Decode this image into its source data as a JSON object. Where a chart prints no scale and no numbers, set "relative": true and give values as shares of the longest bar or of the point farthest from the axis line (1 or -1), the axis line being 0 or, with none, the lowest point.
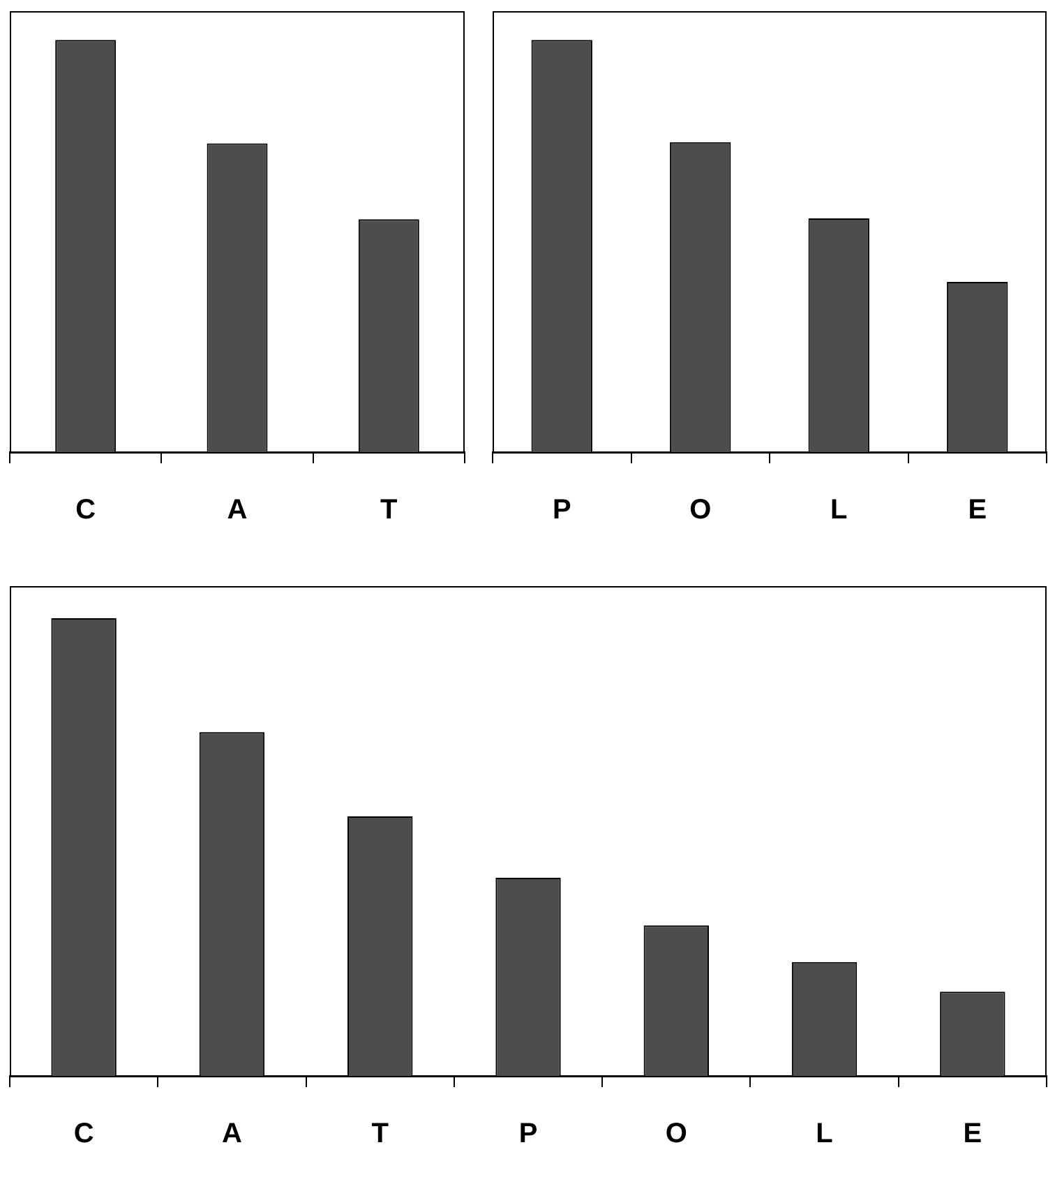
{
  "chart_data": [
    {
      "type": "bar",
      "categories": [
        "C",
        "A",
        "T"
      ],
      "values": [
        1,
        0.749,
        0.565
      ],
      "color": "#4d4d4d",
      "relative": true,
      "grid": false
    },
    {
      "type": "bar",
      "categories": [
        "P",
        "O",
        "L",
        "E"
      ],
      "values": [
        1,
        0.752,
        0.567,
        0.413
      ],
      "color": "#4d4d4d",
      "relative": true,
      "grid": false
    },
    {
      "type": "bar",
      "categories": [
        "C",
        "A",
        "T",
        "P",
        "O",
        "L",
        "E"
      ],
      "values": [
        1,
        0.751,
        0.567,
        0.433,
        0.329,
        0.249,
        0.184
      ],
      "color": "#4d4d4d",
      "relative": true,
      "grid": false
    }
  ]
}
